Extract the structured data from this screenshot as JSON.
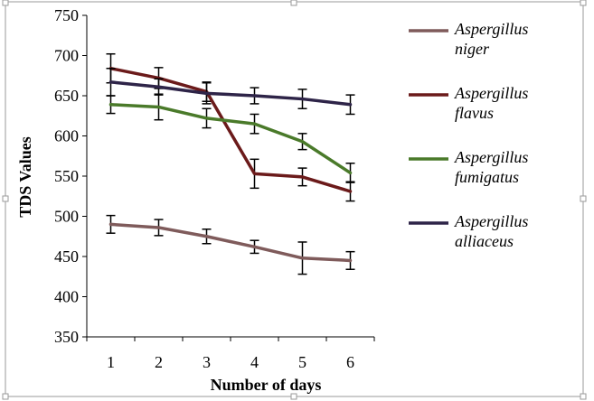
{
  "chart_data": {
    "type": "line",
    "title": "",
    "xlabel": "Number of days",
    "ylabel": "TDS Values",
    "x": [
      1,
      2,
      3,
      4,
      5,
      6
    ],
    "x_tick_labels": [
      "1",
      "2",
      "3",
      "4",
      "5",
      "6"
    ],
    "ylim": [
      350,
      750
    ],
    "y_ticks": [
      350,
      400,
      450,
      500,
      550,
      600,
      650,
      700,
      750
    ],
    "grid": false,
    "legend_position": "right",
    "series": [
      {
        "name": "Aspergillus niger",
        "name_lines": [
          "Aspergillus",
          "niger"
        ],
        "color": "#7f5b5b",
        "values": [
          490,
          486,
          475,
          462,
          448,
          445
        ],
        "errors": [
          11,
          10,
          9,
          8,
          20,
          11
        ]
      },
      {
        "name": "Aspergillus flavus",
        "name_lines": [
          "Aspergillus",
          "flavus"
        ],
        "color": "#6b1a1a",
        "values": [
          684,
          672,
          655,
          553,
          549,
          531
        ],
        "errors": [
          18,
          13,
          12,
          18,
          11,
          12
        ]
      },
      {
        "name": "Aspergillus fumigatus",
        "name_lines": [
          "Aspergillus",
          "fumigatus"
        ],
        "color": "#4a7a2a",
        "values": [
          639,
          636,
          622,
          615,
          593,
          554
        ],
        "errors": [
          11,
          16,
          12,
          12,
          10,
          12
        ]
      },
      {
        "name": "Aspergillus alliaceus",
        "name_lines": [
          "Aspergillus",
          "alliaceus"
        ],
        "color": "#2e2448",
        "values": [
          667,
          661,
          653,
          650,
          646,
          639
        ],
        "errors": [
          17,
          10,
          13,
          10,
          12,
          12
        ]
      }
    ]
  }
}
